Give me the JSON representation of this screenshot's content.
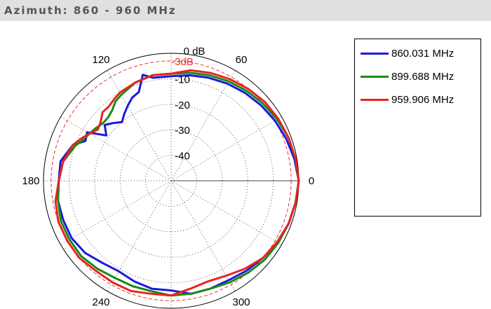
{
  "header": {
    "title": "Azimuth: 860 - 960 MHz"
  },
  "chart_data": {
    "type": "polar",
    "title": "",
    "radial_unit_label": "0 dB",
    "radial_ticks": [
      {
        "value": -3,
        "label": "-3dB",
        "color": "#e8332f"
      },
      {
        "value": -10,
        "label": "-10"
      },
      {
        "value": -20,
        "label": "-20"
      },
      {
        "value": -30,
        "label": "-30"
      },
      {
        "value": -40,
        "label": "-40"
      }
    ],
    "rlim": [
      -50,
      0
    ],
    "angular_ticks": [
      {
        "angle": 0,
        "label": "0"
      },
      {
        "angle": 60,
        "label": "60"
      },
      {
        "angle": 120,
        "label": "120"
      },
      {
        "angle": 180,
        "label": "180"
      },
      {
        "angle": 240,
        "label": "240"
      },
      {
        "angle": 300,
        "label": "300"
      }
    ],
    "grid": true,
    "legend_position": "right",
    "series": [
      {
        "name": "860.031 MHz",
        "color": "#1a1adb",
        "points": [
          [
            0,
            0
          ],
          [
            10,
            -1
          ],
          [
            20,
            -2
          ],
          [
            30,
            -3
          ],
          [
            40,
            -4
          ],
          [
            50,
            -5
          ],
          [
            60,
            -6
          ],
          [
            70,
            -7
          ],
          [
            80,
            -8
          ],
          [
            90,
            -9
          ],
          [
            100,
            -9
          ],
          [
            105,
            -7
          ],
          [
            110,
            -13
          ],
          [
            115,
            -14
          ],
          [
            120,
            -16
          ],
          [
            125,
            -18
          ],
          [
            130,
            -20
          ],
          [
            135,
            -18
          ],
          [
            140,
            -16
          ],
          [
            145,
            -19
          ],
          [
            150,
            -12
          ],
          [
            155,
            -13
          ],
          [
            160,
            -9
          ],
          [
            170,
            -6
          ],
          [
            180,
            -6
          ],
          [
            190,
            -5
          ],
          [
            200,
            -5
          ],
          [
            210,
            -5
          ],
          [
            220,
            -6
          ],
          [
            230,
            -8
          ],
          [
            240,
            -9
          ],
          [
            250,
            -8
          ],
          [
            260,
            -7
          ],
          [
            270,
            -7
          ],
          [
            280,
            -5
          ],
          [
            290,
            -5
          ],
          [
            300,
            -5
          ],
          [
            310,
            -4
          ],
          [
            320,
            -3
          ],
          [
            330,
            -2
          ],
          [
            340,
            -1
          ],
          [
            350,
            -0.5
          ],
          [
            360,
            0
          ]
        ]
      },
      {
        "name": "899.688 MHz",
        "color": "#168a16",
        "points": [
          [
            0,
            0
          ],
          [
            10,
            -0.5
          ],
          [
            20,
            -1
          ],
          [
            30,
            -2
          ],
          [
            40,
            -3
          ],
          [
            50,
            -4
          ],
          [
            60,
            -5
          ],
          [
            70,
            -6
          ],
          [
            80,
            -7
          ],
          [
            90,
            -8
          ],
          [
            100,
            -8
          ],
          [
            110,
            -9
          ],
          [
            120,
            -11
          ],
          [
            125,
            -12
          ],
          [
            130,
            -14
          ],
          [
            135,
            -15
          ],
          [
            140,
            -15
          ],
          [
            145,
            -14
          ],
          [
            150,
            -13
          ],
          [
            155,
            -12
          ],
          [
            160,
            -10
          ],
          [
            170,
            -7
          ],
          [
            180,
            -6
          ],
          [
            190,
            -5
          ],
          [
            200,
            -4
          ],
          [
            210,
            -4
          ],
          [
            220,
            -4
          ],
          [
            230,
            -5
          ],
          [
            240,
            -6
          ],
          [
            250,
            -6
          ],
          [
            260,
            -6
          ],
          [
            270,
            -5
          ],
          [
            280,
            -5
          ],
          [
            290,
            -5
          ],
          [
            300,
            -4
          ],
          [
            310,
            -3
          ],
          [
            320,
            -2
          ],
          [
            330,
            -1.5
          ],
          [
            340,
            -1
          ],
          [
            350,
            -0.5
          ],
          [
            360,
            0
          ]
        ]
      },
      {
        "name": "959.906 MHz",
        "color": "#e8231f",
        "points": [
          [
            0,
            0
          ],
          [
            10,
            -0.5
          ],
          [
            20,
            -1
          ],
          [
            30,
            -1.5
          ],
          [
            40,
            -2
          ],
          [
            50,
            -3
          ],
          [
            60,
            -4
          ],
          [
            70,
            -5
          ],
          [
            80,
            -6
          ],
          [
            90,
            -8
          ],
          [
            100,
            -8
          ],
          [
            110,
            -9
          ],
          [
            120,
            -10
          ],
          [
            125,
            -11
          ],
          [
            130,
            -12
          ],
          [
            135,
            -12
          ],
          [
            140,
            -14
          ],
          [
            145,
            -15
          ],
          [
            150,
            -13
          ],
          [
            155,
            -11
          ],
          [
            160,
            -9
          ],
          [
            170,
            -7
          ],
          [
            180,
            -6
          ],
          [
            190,
            -4
          ],
          [
            200,
            -3
          ],
          [
            210,
            -3
          ],
          [
            220,
            -3
          ],
          [
            230,
            -4
          ],
          [
            240,
            -4
          ],
          [
            250,
            -4
          ],
          [
            260,
            -5
          ],
          [
            270,
            -5
          ],
          [
            280,
            -7
          ],
          [
            290,
            -8
          ],
          [
            300,
            -7
          ],
          [
            310,
            -5
          ],
          [
            320,
            -3
          ],
          [
            330,
            -2
          ],
          [
            340,
            -1
          ],
          [
            350,
            -0.5
          ],
          [
            360,
            0
          ]
        ]
      }
    ]
  }
}
